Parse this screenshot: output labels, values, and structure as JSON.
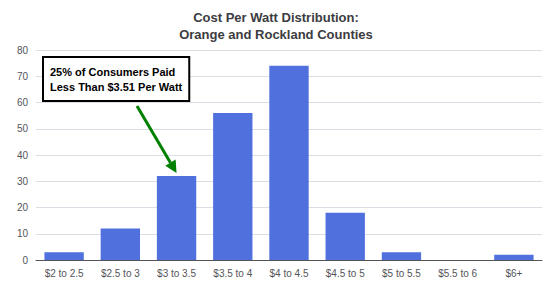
{
  "chart_data": {
    "type": "bar",
    "title": "Cost Per Watt Distribution:\nOrange and Rockland Counties",
    "categories": [
      "$2 to 2.5",
      "$2.5 to 3",
      "$3 to 3.5",
      "$3.5 to 4",
      "$4 to 4.5",
      "$4.5 to 5",
      "$5 to 5.5",
      "$5.5 to 6",
      "$6+"
    ],
    "values": [
      3,
      12,
      32,
      56,
      74,
      18,
      3,
      0,
      2
    ],
    "ylim": [
      0,
      80
    ],
    "yticks": [
      0,
      10,
      20,
      30,
      40,
      50,
      60,
      70,
      80
    ],
    "grid": true,
    "annotations": [
      "25% of Consumers Paid\nLess Than $3.51 Per Watt"
    ]
  }
}
